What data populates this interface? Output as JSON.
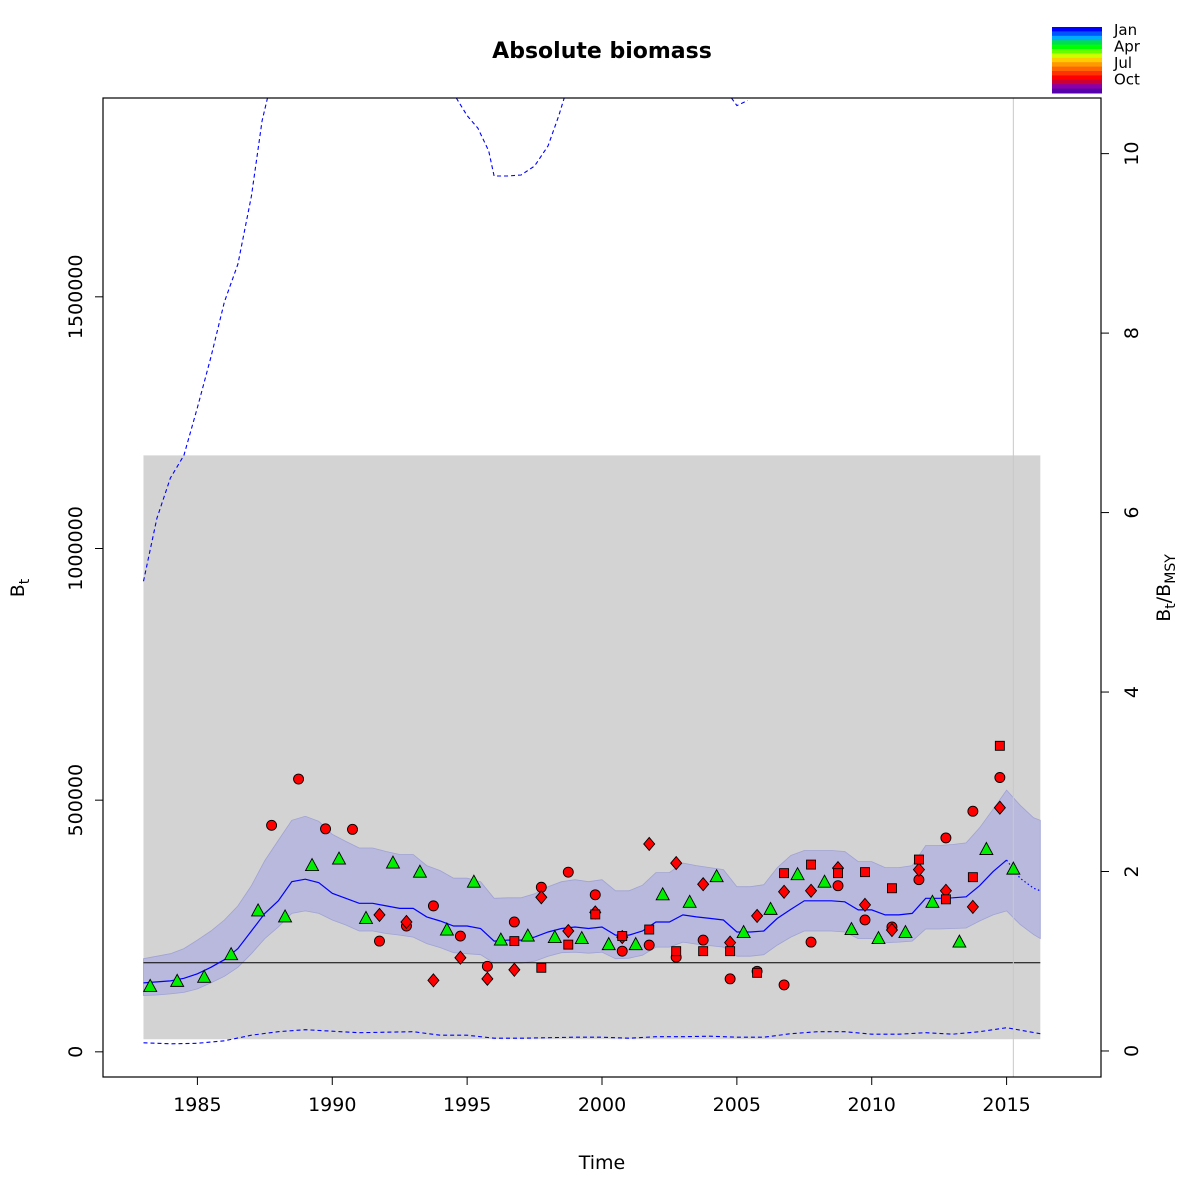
{
  "chart_data": {
    "type": "scatter",
    "title": "Absolute biomass",
    "xlabel": "Time",
    "ylabel_main": "B",
    "ylabel_sub": "t",
    "y2label_num_main": "B",
    "y2label_num_sub": "t",
    "y2label_sep": "/",
    "y2label_den_main": "B",
    "y2label_den_sub": "MSY",
    "xlim": [
      1981.5,
      2018.5
    ],
    "ylim": [
      -50000,
      1895000
    ],
    "y2lim": [
      -0.29,
      10.62
    ],
    "bmsy": 177000,
    "vertical_line_x": 2015.25,
    "x_ticks": [
      1985,
      1990,
      1995,
      2000,
      2005,
      2010,
      2015
    ],
    "y_ticks": [
      0,
      500000,
      1000000,
      1500000
    ],
    "y_tick_labels": [
      "0",
      "500000",
      "1000000",
      "1500000"
    ],
    "y2_ticks": [
      0,
      2,
      4,
      6,
      8,
      10
    ],
    "grid": false,
    "colors": {
      "shaded_region": "#d3d3d3",
      "confidence_band": "#b8b9dc",
      "estimate_line": "#0000ff",
      "bmsy_line": "#000000",
      "vertical_line": "#c8c8c8",
      "spring_index_points": "#00ee00",
      "autumn_index_points": "#ff0000"
    },
    "shaded_region": {
      "x": [
        1983.0,
        2016.25
      ],
      "y": [
        25000,
        1185000
      ]
    },
    "legend": {
      "position": "top-right",
      "labels": [
        "Jan",
        "Apr",
        "Jul",
        "Oct"
      ],
      "gradient": [
        "#0000ff",
        "#0055ff",
        "#00aaff",
        "#00dd55",
        "#00ff00",
        "#66ff00",
        "#ccff00",
        "#ffcc00",
        "#ff9900",
        "#ff6600",
        "#ff3300",
        "#ff0000",
        "#cc0033",
        "#8800aa",
        "#5500aa"
      ]
    },
    "estimate": {
      "x": [
        1983.0,
        1983.5,
        1984.0,
        1984.5,
        1985.0,
        1985.5,
        1986.0,
        1986.5,
        1987.0,
        1987.5,
        1988.0,
        1988.5,
        1989.0,
        1989.5,
        1990.0,
        1990.5,
        1991.0,
        1991.5,
        1992.0,
        1992.5,
        1993.0,
        1993.5,
        1994.0,
        1994.5,
        1995.0,
        1995.5,
        1996.0,
        1996.5,
        1997.0,
        1997.5,
        1998.0,
        1998.5,
        1999.0,
        1999.5,
        2000.0,
        2000.5,
        2001.0,
        2001.5,
        2002.0,
        2002.5,
        2003.0,
        2003.5,
        2004.0,
        2004.5,
        2005.0,
        2005.5,
        2006.0,
        2006.5,
        2007.0,
        2007.5,
        2008.0,
        2008.5,
        2009.0,
        2009.5,
        2010.0,
        2010.5,
        2011.0,
        2011.5,
        2012.0,
        2012.5,
        2013.0,
        2013.5,
        2014.0,
        2014.5,
        2015.0
      ],
      "y": [
        137000,
        139000,
        141000,
        146000,
        155000,
        168000,
        183000,
        205000,
        240000,
        275000,
        300000,
        338000,
        343000,
        336000,
        315000,
        305000,
        295000,
        295000,
        290000,
        285000,
        285000,
        268000,
        260000,
        250000,
        250000,
        245000,
        220000,
        222000,
        222000,
        228000,
        238000,
        245000,
        248000,
        245000,
        248000,
        232000,
        232000,
        240000,
        258000,
        258000,
        272000,
        268000,
        265000,
        262000,
        238000,
        238000,
        240000,
        265000,
        283000,
        300000,
        300000,
        300000,
        298000,
        282000,
        282000,
        272000,
        272000,
        275000,
        305000,
        305000,
        306000,
        308000,
        330000,
        358000,
        381000
      ],
      "projection": {
        "x": [
          2015.0,
          2015.5,
          2016.0,
          2016.25
        ],
        "y": [
          381000,
          345000,
          325000,
          320000
        ]
      },
      "lower": [
        112000,
        113000,
        115000,
        118000,
        125000,
        137000,
        150000,
        168000,
        195000,
        225000,
        248000,
        275000,
        280000,
        275000,
        262000,
        252000,
        240000,
        240000,
        235000,
        232000,
        228000,
        215000,
        207000,
        197000,
        195000,
        193000,
        176000,
        177000,
        176000,
        180000,
        190000,
        197000,
        198000,
        196000,
        198000,
        185000,
        186000,
        192000,
        208000,
        208000,
        218000,
        214000,
        211000,
        208000,
        190000,
        190000,
        193000,
        212000,
        228000,
        240000,
        240000,
        240000,
        238000,
        225000,
        225000,
        217000,
        218000,
        220000,
        244000,
        244000,
        245000,
        246000,
        260000,
        272000,
        280000
      ],
      "lower_projection": [
        280000,
        253000,
        233000,
        225000
      ],
      "upper": [
        185000,
        190000,
        195000,
        205000,
        222000,
        240000,
        262000,
        290000,
        330000,
        380000,
        420000,
        460000,
        468000,
        458000,
        432000,
        418000,
        405000,
        405000,
        398000,
        392000,
        392000,
        370000,
        360000,
        345000,
        345000,
        338000,
        305000,
        306000,
        306000,
        314000,
        328000,
        338000,
        342000,
        338000,
        342000,
        320000,
        320000,
        331000,
        356000,
        356000,
        375000,
        370000,
        366000,
        362000,
        328000,
        328000,
        332000,
        366000,
        390000,
        400000,
        400000,
        400000,
        398000,
        378000,
        378000,
        366000,
        366000,
        370000,
        410000,
        410000,
        412000,
        415000,
        445000,
        482000,
        520000
      ],
      "upper_projection": [
        520000,
        490000,
        465000,
        460000
      ]
    },
    "upper_ci_line": {
      "x": [
        1983.0,
        1983.5,
        1984.0,
        1984.5,
        1985.0,
        1985.5,
        1986.0,
        1986.5,
        1987.0,
        1987.4,
        1987.6
      ],
      "y": [
        935000,
        1060000,
        1140000,
        1185000,
        1280000,
        1380000,
        1490000,
        1565000,
        1700000,
        1850000,
        1895000
      ],
      "segment2_x": [
        1994.6,
        1995.0,
        1995.4,
        1995.8,
        1996.0,
        1996.5,
        1997.0,
        1997.5,
        1998.0,
        1998.4,
        1998.6
      ],
      "segment2_y": [
        1895000,
        1860000,
        1835000,
        1790000,
        1740000,
        1740000,
        1742000,
        1760000,
        1800000,
        1860000,
        1895000
      ],
      "segment3_x": [
        2004.8,
        2005.0,
        2005.4
      ],
      "segment3_y": [
        1895000,
        1880000,
        1890000
      ]
    },
    "lower_ci_line": {
      "x": [
        1983.0,
        1984.0,
        1985.0,
        1986.0,
        1987.0,
        1988.0,
        1989.0,
        1990.0,
        1991.0,
        1992.0,
        1993.0,
        1994.0,
        1995.0,
        1996.0,
        1997.0,
        1998.0,
        1999.0,
        2000.0,
        2001.0,
        2002.0,
        2003.0,
        2004.0,
        2005.0,
        2006.0,
        2007.0,
        2008.0,
        2009.0,
        2010.0,
        2011.0,
        2012.0,
        2013.0,
        2014.0,
        2015.0,
        2016.25
      ],
      "y": [
        18000,
        16000,
        17000,
        22000,
        33000,
        40000,
        44000,
        41000,
        38000,
        39000,
        40000,
        33000,
        33000,
        27000,
        27000,
        28000,
        29000,
        29000,
        27000,
        30000,
        30000,
        31000,
        29000,
        29000,
        36000,
        40000,
        40000,
        35000,
        35000,
        38000,
        35000,
        40000,
        48000,
        36000
      ]
    },
    "series": [
      {
        "name": "",
        "shape": "triangle",
        "color": "#00ee00",
        "x": [
          1983.25,
          1984.25,
          1985.25,
          1986.25,
          1987.25,
          1988.25,
          1989.25,
          1990.25,
          1991.25,
          1992.25,
          1993.25,
          1994.25,
          1995.25,
          1996.25,
          1997.25,
          1998.25,
          1999.25,
          2000.25,
          2001.25,
          2002.25,
          2003.25,
          2004.25,
          2005.25,
          2006.25,
          2007.25,
          2008.25,
          2009.25,
          2010.25,
          2011.25,
          2012.25,
          2013.25,
          2014.25,
          2015.25
        ],
        "y": [
          130000,
          140000,
          148000,
          193000,
          280000,
          268000,
          370000,
          383000,
          265000,
          375000,
          357000,
          242000,
          337000,
          222000,
          230000,
          227000,
          225000,
          213000,
          213000,
          312000,
          297000,
          348000,
          237000,
          283000,
          352000,
          337000,
          243000,
          225000,
          237000,
          297000,
          218000,
          402000,
          363000
        ]
      },
      {
        "name": "",
        "shape": "circle",
        "color": "#ff0000",
        "x": [
          1987.75,
          1988.75,
          1989.75,
          1990.75,
          1991.75,
          1992.75,
          1993.75,
          1994.75,
          1995.75,
          1996.75,
          1997.75,
          1998.75,
          1999.75,
          2000.75,
          2001.75,
          2002.75,
          2003.75,
          2004.75,
          2005.75,
          2006.75,
          2007.75,
          2008.75,
          2009.75,
          2010.75,
          2011.75,
          2012.75,
          2013.75,
          2014.75
        ],
        "y": [
          450000,
          542000,
          443000,
          442000,
          220000,
          250000,
          290000,
          230000,
          170000,
          258000,
          327000,
          357000,
          312000,
          200000,
          212000,
          188000,
          222000,
          145000,
          160000,
          133000,
          218000,
          330000,
          262000,
          248000,
          342000,
          425000,
          478000,
          545000
        ]
      },
      {
        "name": "",
        "shape": "diamond",
        "color": "#ff0000",
        "x": [
          1991.75,
          1992.75,
          1993.75,
          1994.75,
          1995.75,
          1996.75,
          1997.75,
          1998.75,
          1999.75,
          2000.75,
          2001.75,
          2002.75,
          2003.75,
          2004.75,
          2005.75,
          2006.75,
          2007.75,
          2008.75,
          2009.75,
          2010.75,
          2011.75,
          2012.75,
          2013.75,
          2014.75
        ],
        "y": [
          272000,
          258000,
          142000,
          187000,
          145000,
          163000,
          307000,
          240000,
          277000,
          228000,
          413000,
          375000,
          333000,
          217000,
          270000,
          318000,
          320000,
          365000,
          292000,
          242000,
          362000,
          320000,
          288000,
          485000
        ]
      },
      {
        "name": "",
        "shape": "square",
        "color": "#ff0000",
        "x": [
          1996.75,
          1997.75,
          1998.75,
          1999.75,
          2000.75,
          2001.75,
          2002.75,
          2003.75,
          2004.75,
          2005.75,
          2006.75,
          2007.75,
          2008.75,
          2009.75,
          2010.75,
          2011.75,
          2012.75,
          2013.75,
          2014.75
        ],
        "y": [
          220000,
          167000,
          213000,
          273000,
          230000,
          243000,
          200000,
          200000,
          200000,
          157000,
          355000,
          372000,
          355000,
          357000,
          325000,
          382000,
          303000,
          347000,
          608000
        ]
      }
    ]
  }
}
